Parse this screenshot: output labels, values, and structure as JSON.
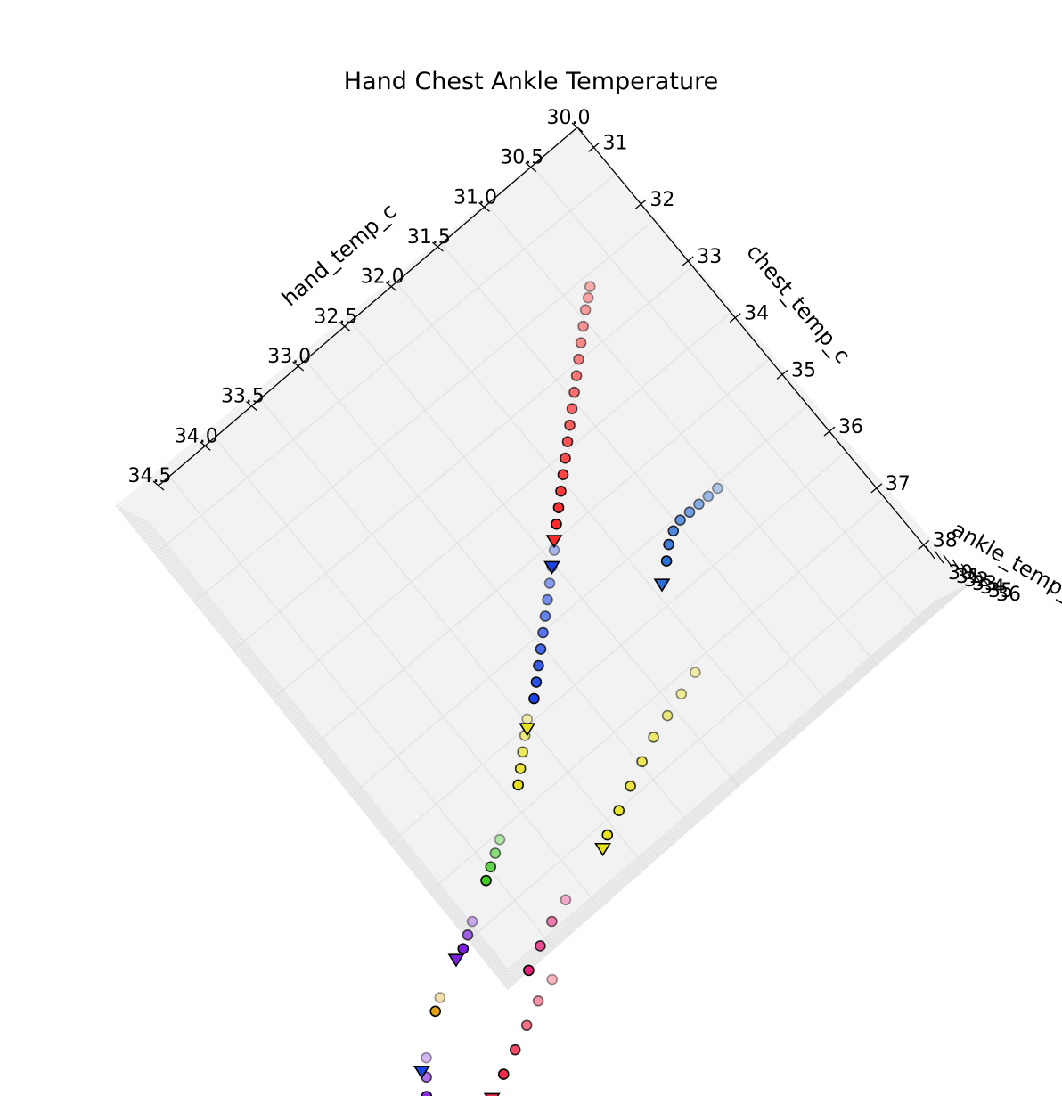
{
  "chart_data": {
    "type": "scatter3d",
    "title": "Hand Chest Ankle Temperature",
    "axes": {
      "x": {
        "label": "hand_temp_c",
        "ticks": [
          "30.0",
          "30.5",
          "31.0",
          "31.5",
          "32.0",
          "32.5",
          "33.0",
          "33.5",
          "34.0",
          "34.5"
        ]
      },
      "y": {
        "label": "chest_temp_c",
        "ticks": [
          "31",
          "32",
          "33",
          "34",
          "35",
          "36",
          "37",
          "38"
        ]
      },
      "z": {
        "label": "ankle_temp_c",
        "ticks": [
          "30",
          "31",
          "32",
          "33",
          "34",
          "35",
          "36"
        ]
      }
    },
    "grid": true,
    "series": [
      {
        "color": "#ff2a2a",
        "points": [
          [
            30.75,
            32.4
          ],
          [
            30.82,
            32.5
          ],
          [
            30.9,
            32.6
          ],
          [
            31.0,
            32.75
          ],
          [
            31.1,
            32.9
          ],
          [
            31.2,
            33.05
          ],
          [
            31.3,
            33.2
          ],
          [
            31.4,
            33.35
          ],
          [
            31.5,
            33.5
          ],
          [
            31.6,
            33.65
          ],
          [
            31.7,
            33.8
          ],
          [
            31.8,
            33.95
          ],
          [
            31.9,
            34.1
          ],
          [
            32.0,
            34.25
          ],
          [
            32.1,
            34.4
          ],
          [
            32.2,
            34.55
          ]
        ],
        "end": [
          32.3,
          34.7
        ]
      },
      {
        "color": "#1a44e8",
        "points": [
          [
            32.35,
            34.8
          ],
          [
            32.45,
            34.95
          ],
          [
            32.55,
            35.1
          ],
          [
            32.65,
            35.25
          ],
          [
            32.75,
            35.4
          ],
          [
            32.85,
            35.55
          ],
          [
            32.95,
            35.7
          ],
          [
            33.05,
            35.85
          ],
          [
            33.15,
            36.0
          ],
          [
            33.25,
            36.15
          ]
        ],
        "end": [
          32.45,
          34.95
        ]
      },
      {
        "color": "#2a6fd6",
        "points": [
          [
            31.0,
            35.6
          ],
          [
            31.1,
            35.6
          ],
          [
            31.2,
            35.6
          ],
          [
            31.3,
            35.6
          ],
          [
            31.4,
            35.6
          ],
          [
            31.5,
            35.65
          ],
          [
            31.6,
            35.75
          ],
          [
            31.7,
            35.9
          ]
        ],
        "end": [
          31.85,
          36.1
        ]
      },
      {
        "color": "#e8e21a",
        "points": [
          [
            33.4,
            36.3
          ],
          [
            33.5,
            36.45
          ],
          [
            33.6,
            36.6
          ],
          [
            33.7,
            36.75
          ],
          [
            33.8,
            36.9
          ]
        ],
        "end": [
          33.45,
          36.4
        ]
      },
      {
        "color": "#3acc1e",
        "points": [
          [
            34.2,
            37.3
          ],
          [
            34.3,
            37.4
          ],
          [
            34.4,
            37.5
          ],
          [
            34.5,
            37.6
          ]
        ]
      },
      {
        "color": "#7a1ee0",
        "points": [
          [
            34.8,
            37.9
          ],
          [
            34.9,
            38.0
          ],
          [
            35.0,
            38.1
          ]
        ],
        "end": [
          35.1,
          38.15
        ]
      },
      {
        "color": "#e8e21a",
        "points": [
          [
            32.1,
            37.3
          ],
          [
            32.3,
            37.4
          ],
          [
            32.5,
            37.5
          ],
          [
            32.7,
            37.6
          ],
          [
            32.9,
            37.75
          ],
          [
            33.1,
            37.9
          ],
          [
            33.3,
            38.05
          ],
          [
            33.5,
            38.2
          ]
        ],
        "end": [
          33.6,
          38.3
        ]
      },
      {
        "color": "#e8207a",
        "points": [
          [
            34.1,
            38.5
          ],
          [
            34.3,
            38.6
          ],
          [
            34.5,
            38.75
          ],
          [
            34.7,
            38.9
          ]
        ]
      },
      {
        "color": "#f02a4a",
        "points": [
          [
            34.6,
            39.2
          ],
          [
            34.8,
            39.3
          ],
          [
            35.0,
            39.45
          ],
          [
            35.2,
            39.6
          ],
          [
            35.4,
            39.75
          ]
        ],
        "end": [
          35.6,
          39.9
        ]
      },
      {
        "color": "#e0a010",
        "points": [
          [
            35.4,
            38.4
          ],
          [
            35.5,
            38.5
          ]
        ]
      },
      {
        "color": "#8a2ae0",
        "points": [
          [
            35.8,
            38.9
          ],
          [
            35.9,
            39.1
          ],
          [
            36.0,
            39.3
          ]
        ]
      },
      {
        "color": "#1a44e8",
        "points": [],
        "end": [
          35.9,
          39.0
        ]
      }
    ]
  }
}
